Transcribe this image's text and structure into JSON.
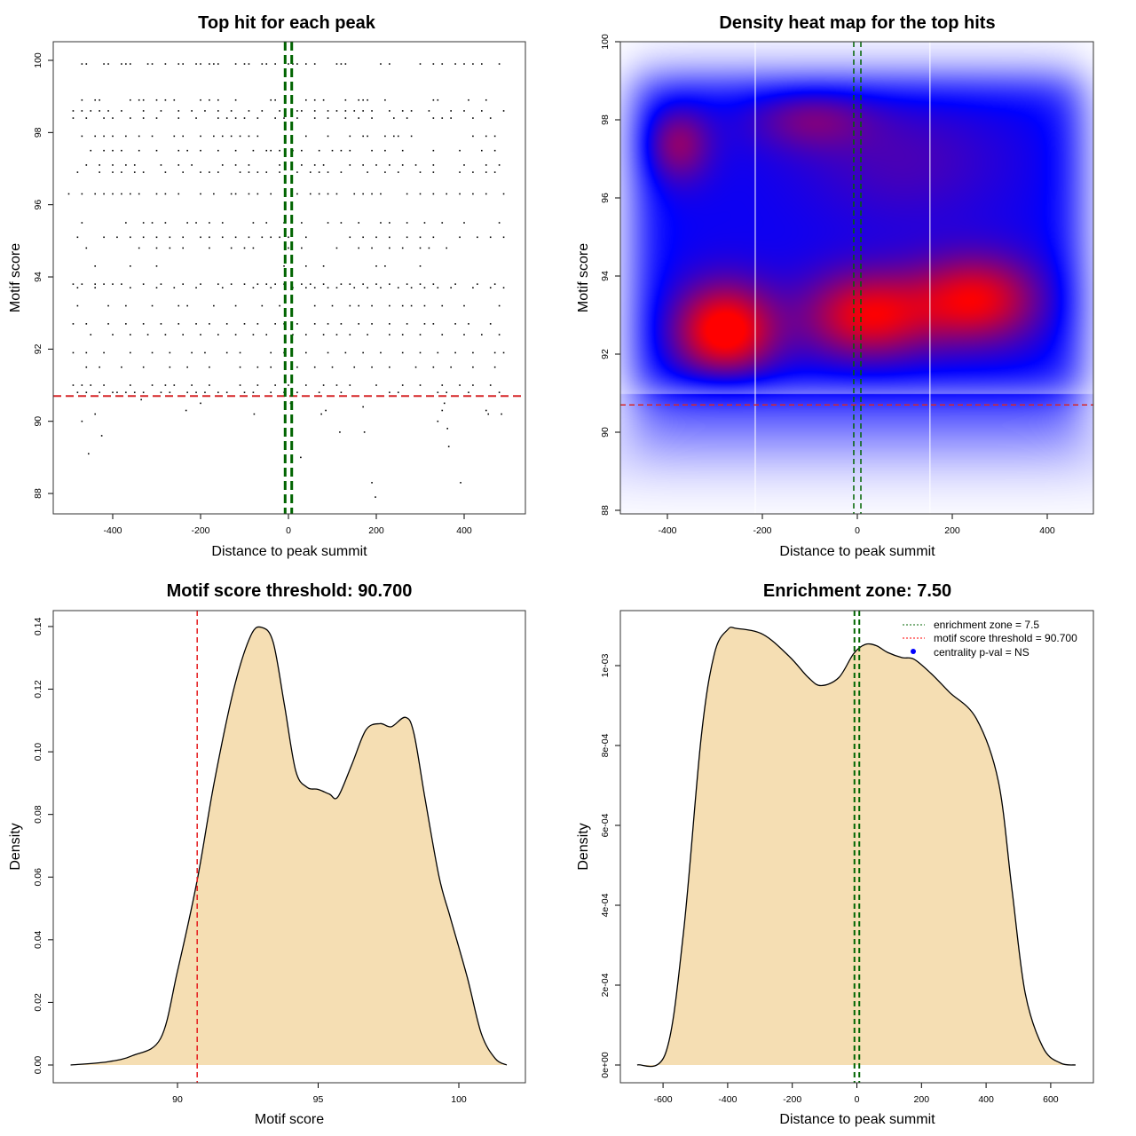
{
  "chart_data": [
    {
      "type": "scatter",
      "title": "Top hit for each peak",
      "xlabel": "Distance to peak summit",
      "ylabel": "Motif score",
      "xlim": [
        -535,
        540
      ],
      "ylim": [
        87.5,
        100.5
      ],
      "xticks": [
        "-400",
        "-200",
        "0",
        "200",
        "400"
      ],
      "yticks": [
        "88",
        "90",
        "92",
        "94",
        "96",
        "98",
        "100"
      ],
      "enrichment_zone": 7.5,
      "threshold": 90.7,
      "colors": {
        "points": "#000000",
        "zone": "#006400",
        "threshold": "#d62728"
      },
      "rows": [
        {
          "y": 99.9,
          "x": [
            -470,
            -460,
            -420,
            -410,
            -380,
            -370,
            -360,
            -320,
            -310,
            -280,
            -250,
            -240,
            -210,
            -200,
            -180,
            -170,
            -160,
            -120,
            -100,
            -90,
            -60,
            -50,
            -30,
            0,
            10,
            20,
            40,
            60,
            110,
            120,
            130,
            210,
            230,
            300,
            330,
            350,
            380,
            400,
            420,
            440,
            480
          ]
        },
        {
          "y": 98.9,
          "x": [
            -470,
            -440,
            -430,
            -360,
            -340,
            -330,
            -300,
            -280,
            -260,
            -200,
            -180,
            -160,
            -120,
            -40,
            -30,
            40,
            60,
            80,
            130,
            160,
            170,
            180,
            220,
            330,
            340,
            410,
            450
          ]
        },
        {
          "y": 98.6,
          "x": [
            -490,
            -470,
            -450,
            -430,
            -410,
            -380,
            -330,
            -290,
            -250,
            -220,
            -190,
            -160,
            -130,
            -90,
            -60,
            -20,
            20,
            30,
            60,
            90,
            110,
            130,
            150,
            170,
            190,
            230,
            260,
            280,
            320,
            370,
            400,
            440,
            490
          ]
        },
        {
          "y": 98.4,
          "x": [
            -490,
            -460,
            -420,
            -400,
            -360,
            -330,
            -300,
            -250,
            -210,
            -160,
            -140,
            -120,
            -100,
            -70,
            -30,
            -10,
            20,
            60,
            90,
            130,
            160,
            190,
            240,
            270,
            330,
            350,
            370,
            420,
            460
          ]
        },
        {
          "y": 97.9,
          "x": [
            -470,
            -440,
            -420,
            -400,
            -370,
            -340,
            -310,
            -260,
            -240,
            -200,
            -170,
            -150,
            -130,
            -110,
            -90,
            -70,
            40,
            90,
            140,
            170,
            180,
            220,
            240,
            250,
            280,
            420,
            450,
            470
          ]
        },
        {
          "y": 97.5,
          "x": [
            -450,
            -420,
            -400,
            -380,
            -340,
            -300,
            -250,
            -230,
            -200,
            -160,
            -120,
            -80,
            -50,
            -40,
            -20,
            10,
            30,
            70,
            100,
            120,
            140,
            190,
            220,
            260,
            330,
            390,
            440,
            470
          ]
        },
        {
          "y": 97.1,
          "x": [
            -460,
            -430,
            -400,
            -370,
            -350,
            -290,
            -250,
            -220,
            -150,
            -120,
            -90,
            -20,
            30,
            60,
            80,
            140,
            170,
            200,
            230,
            260,
            290,
            330,
            400,
            450,
            480
          ]
        },
        {
          "y": 96.9,
          "x": [
            -480,
            -430,
            -400,
            -380,
            -350,
            -330,
            -280,
            -240,
            -200,
            -180,
            -160,
            -110,
            -90,
            -70,
            -50,
            -20,
            20,
            50,
            70,
            90,
            120,
            180,
            220,
            250,
            300,
            330,
            390,
            420,
            450,
            470
          ]
        },
        {
          "y": 96.3,
          "x": [
            -500,
            -470,
            -440,
            -420,
            -400,
            -380,
            -360,
            -340,
            -300,
            -280,
            -250,
            -200,
            -170,
            -130,
            -120,
            -90,
            -70,
            -40,
            20,
            50,
            70,
            90,
            110,
            150,
            170,
            190,
            210,
            270,
            300,
            330,
            360,
            390,
            420,
            450,
            490
          ]
        },
        {
          "y": 95.5,
          "x": [
            -470,
            -370,
            -330,
            -310,
            -280,
            -230,
            -210,
            -180,
            -150,
            -80,
            -50,
            -10,
            30,
            90,
            120,
            160,
            210,
            230,
            270,
            310,
            350,
            400,
            480
          ]
        },
        {
          "y": 95.1,
          "x": [
            -480,
            -420,
            -390,
            -360,
            -330,
            -300,
            -270,
            -240,
            -200,
            -180,
            -150,
            -120,
            -90,
            -60,
            -40,
            -20,
            0,
            40,
            140,
            170,
            200,
            230,
            270,
            300,
            330,
            390,
            430,
            460,
            490
          ]
        },
        {
          "y": 94.8,
          "x": [
            -460,
            -340,
            -300,
            -270,
            -240,
            -180,
            -130,
            -100,
            -80,
            0,
            30,
            110,
            160,
            190,
            230,
            260,
            300,
            320,
            360
          ]
        },
        {
          "y": 94.3,
          "x": [
            -440,
            -360,
            -300,
            -10,
            40,
            80,
            200,
            220,
            300
          ]
        },
        {
          "y": 93.8,
          "x": [
            -490,
            -470,
            -440,
            -420,
            -400,
            -380,
            -330,
            -290,
            -240,
            -200,
            -160,
            -130,
            -100,
            -70,
            -50,
            -30,
            -10,
            30,
            50,
            80,
            120,
            140,
            170,
            200,
            230,
            270,
            300,
            330,
            380,
            430,
            470
          ]
        },
        {
          "y": 93.7,
          "x": [
            -480,
            -440,
            -360,
            -300,
            -260,
            -210,
            -150,
            -80,
            -40,
            10,
            40,
            60,
            90,
            110,
            150,
            180,
            210,
            250,
            280,
            310,
            340,
            370,
            420,
            460,
            490
          ]
        },
        {
          "y": 93.2,
          "x": [
            -480,
            -410,
            -370,
            -310,
            -250,
            -230,
            -170,
            -120,
            -60,
            -20,
            60,
            100,
            140,
            160,
            190,
            230,
            260,
            280,
            310,
            350,
            400,
            480
          ]
        },
        {
          "y": 92.7,
          "x": [
            -490,
            -460,
            -410,
            -370,
            -330,
            -290,
            -250,
            -210,
            -180,
            -140,
            -100,
            -70,
            -30,
            -10,
            20,
            60,
            90,
            120,
            160,
            190,
            230,
            270,
            310,
            330,
            380,
            410,
            460
          ]
        },
        {
          "y": 92.4,
          "x": [
            -450,
            -400,
            -360,
            -320,
            -280,
            -240,
            -200,
            -160,
            -120,
            -80,
            -50,
            10,
            40,
            80,
            110,
            140,
            180,
            230,
            260,
            300,
            350,
            400,
            440,
            480
          ]
        },
        {
          "y": 91.9,
          "x": [
            -490,
            -460,
            -420,
            -360,
            -310,
            -270,
            -220,
            -190,
            -140,
            -110,
            -40,
            -10,
            40,
            90,
            130,
            170,
            210,
            260,
            300,
            340,
            380,
            420,
            470,
            490
          ]
        },
        {
          "y": 91.5,
          "x": [
            -460,
            -430,
            -380,
            -330,
            -270,
            -230,
            -180,
            -110,
            -70,
            -40,
            20,
            60,
            100,
            150,
            190,
            230,
            290,
            330,
            370,
            420,
            470
          ]
        },
        {
          "y": 91.0,
          "x": [
            -490,
            -470,
            -450,
            -420,
            -360,
            -310,
            -280,
            -260,
            -220,
            -180,
            -110,
            -70,
            -30,
            0,
            40,
            80,
            110,
            140,
            200,
            260,
            300,
            350,
            390,
            420,
            460
          ]
        },
        {
          "y": 90.8,
          "x": [
            -480,
            -460,
            -430,
            -400,
            -390,
            -370,
            -350,
            -330,
            -290,
            -270,
            -230,
            -210,
            -190,
            -160,
            -140,
            -100,
            -80,
            -40,
            -10,
            20,
            70,
            120,
            230,
            250,
            340,
            360,
            410,
            480
          ]
        }
      ],
      "extra_points": [
        [
          -470,
          90.0
        ],
        [
          -440,
          90.2
        ],
        [
          -425,
          89.6
        ],
        [
          -455,
          89.1
        ],
        [
          -335,
          90.6
        ],
        [
          -233,
          90.3
        ],
        [
          -200,
          90.5
        ],
        [
          -78,
          90.2
        ],
        [
          5,
          90.5
        ],
        [
          28,
          89.0
        ],
        [
          75,
          90.2
        ],
        [
          85,
          90.3
        ],
        [
          117,
          89.7
        ],
        [
          170,
          90.4
        ],
        [
          173,
          89.7
        ],
        [
          190,
          88.3
        ],
        [
          198,
          87.9
        ],
        [
          340,
          90.0
        ],
        [
          350,
          90.3
        ],
        [
          355,
          90.5
        ],
        [
          362,
          89.8
        ],
        [
          365,
          89.3
        ],
        [
          392,
          88.3
        ],
        [
          450,
          90.3
        ],
        [
          455,
          90.2
        ],
        [
          485,
          90.2
        ]
      ]
    },
    {
      "type": "heatmap",
      "title": "Density heat map for the top hits",
      "xlabel": "Distance to peak summit",
      "ylabel": "Motif score",
      "xlim": [
        -500,
        500
      ],
      "ylim": [
        87.9,
        100.1
      ],
      "xticks": [
        "-400",
        "-200",
        "0",
        "200",
        "400"
      ],
      "yticks": [
        "88",
        "90",
        "92",
        "94",
        "96",
        "98",
        "100"
      ],
      "enrichment_zone": 7.5,
      "threshold": 90.7,
      "white_lines_x": [
        -215,
        153
      ],
      "colors": {
        "low": "#ffffff",
        "mid": "#0000ff",
        "high": "#ff0000",
        "zone": "#006400",
        "threshold": "#d62728"
      },
      "plateau": {
        "x": [
          -470,
          470
        ],
        "y": [
          91.0,
          99.1
        ]
      },
      "hotspots": [
        {
          "x": -280,
          "y": 92.6,
          "sx": 75,
          "sy": 0.85,
          "w": 0.55
        },
        {
          "x": 20,
          "y": 93.0,
          "sx": 95,
          "sy": 0.8,
          "w": 0.45
        },
        {
          "x": 250,
          "y": 93.4,
          "sx": 95,
          "sy": 0.8,
          "w": 0.45
        },
        {
          "x": -380,
          "y": 97.4,
          "sx": 50,
          "sy": 0.7,
          "w": 0.28
        },
        {
          "x": -100,
          "y": 98.1,
          "sx": 90,
          "sy": 0.6,
          "w": 0.22
        },
        {
          "x": 100,
          "y": 97.0,
          "sx": 150,
          "sy": 1.2,
          "w": 0.12
        }
      ]
    },
    {
      "type": "area",
      "title": "Motif score threshold: 90.700",
      "xlabel": "Motif score",
      "ylabel": "Density",
      "xlim": [
        85.6,
        102.3
      ],
      "ylim": [
        -0.005,
        0.145
      ],
      "xticks": [
        "90",
        "95",
        "100"
      ],
      "yticks": [
        "0.00",
        "0.02",
        "0.04",
        "0.06",
        "0.08",
        "0.10",
        "0.12",
        "0.14"
      ],
      "threshold": 90.7,
      "colors": {
        "fill": "#f5deb3",
        "line": "#000000",
        "threshold": "#e41a1c"
      },
      "x": [
        86.2,
        87.5,
        88.4,
        89.4,
        90.0,
        90.7,
        91.3,
        92.0,
        92.6,
        93.0,
        93.4,
        93.8,
        94.2,
        94.6,
        95.0,
        95.4,
        95.7,
        96.2,
        96.7,
        97.2,
        97.6,
        98.1,
        98.4,
        98.8,
        99.3,
        99.7,
        100.3,
        100.8,
        101.3,
        101.7
      ],
      "y": [
        0,
        0.001,
        0.003,
        0.0085,
        0.03,
        0.059,
        0.09,
        0.12,
        0.137,
        0.1397,
        0.135,
        0.115,
        0.094,
        0.0887,
        0.088,
        0.0865,
        0.0856,
        0.096,
        0.107,
        0.109,
        0.108,
        0.111,
        0.106,
        0.085,
        0.06,
        0.047,
        0.028,
        0.01,
        0.002,
        0
      ]
    },
    {
      "type": "area",
      "title": "Enrichment zone: 7.50",
      "xlabel": "Distance to peak summit",
      "ylabel": "Density",
      "xlim": [
        -730,
        730
      ],
      "ylim": [
        -4e-05,
        0.00114
      ],
      "xticks": [
        "-600",
        "-400",
        "-200",
        "0",
        "200",
        "400",
        "600"
      ],
      "yticks": [
        "0e+00",
        "2e-04",
        "4e-04",
        "6e-04",
        "8e-04",
        "1e-03"
      ],
      "enrichment_zone": 7.5,
      "colors": {
        "fill": "#f5deb3",
        "line": "#000000",
        "zone": "#006400"
      },
      "x": [
        -680,
        -592,
        -537,
        -482,
        -441,
        -400,
        -372,
        -290,
        -208,
        -150,
        -111,
        -56,
        -10,
        26,
        60,
        95,
        140,
        177,
        230,
        287,
        370,
        438,
        480,
        521,
        576,
        630,
        677
      ],
      "y": [
        0,
        3e-05,
        0.00033,
        0.00082,
        0.00103,
        0.00109,
        0.001093,
        0.001078,
        0.001022,
        0.00097,
        0.00095,
        0.00097,
        0.00103,
        0.001053,
        0.00105,
        0.001033,
        0.00102,
        0.001016,
        0.00098,
        0.000933,
        0.000867,
        0.00071,
        0.00044,
        0.00018,
        4.4e-05,
        5e-06,
        0
      ],
      "legend": {
        "position": "top-right",
        "items": [
          {
            "label": "enrichment zone = 7.5",
            "color": "#006400",
            "style": "dotted-line"
          },
          {
            "label": "motif score threshold = 90.700",
            "color": "#ff0000",
            "style": "dotted-line"
          },
          {
            "label": "centrality p-val = NS",
            "color": "#0000ff",
            "style": "point"
          }
        ]
      }
    }
  ]
}
